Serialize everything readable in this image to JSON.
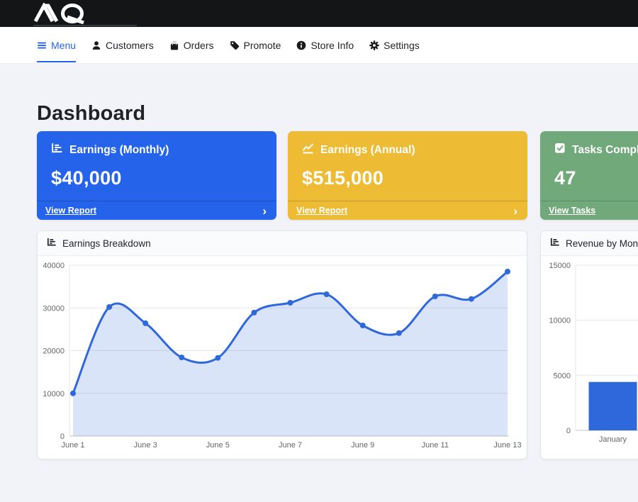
{
  "brand": {
    "logo_text": "AIQ",
    "logo_icon": "aiq-logo-icon"
  },
  "nav": {
    "active_color": "#2563eb",
    "items": [
      {
        "label": "Menu",
        "icon": "hamburger-icon",
        "active": true
      },
      {
        "label": "Customers",
        "icon": "person-icon",
        "active": false
      },
      {
        "label": "Orders",
        "icon": "bag-icon",
        "active": false
      },
      {
        "label": "Promote",
        "icon": "tag-icon",
        "active": false
      },
      {
        "label": "Store Info",
        "icon": "info-circle-icon",
        "active": false
      },
      {
        "label": "Settings",
        "icon": "gear-icon",
        "active": false
      }
    ]
  },
  "page": {
    "title": "Dashboard"
  },
  "stat_cards": [
    {
      "title": "Earnings (Monthly)",
      "value": "$40,000",
      "link_label": "View Report",
      "chevron": "›",
      "color": "#2563eb",
      "icon": "chart-bar-icon"
    },
    {
      "title": "Earnings (Annual)",
      "value": "$515,000",
      "link_label": "View Report",
      "chevron": "›",
      "color": "#edbc34",
      "icon": "chart-line-icon"
    },
    {
      "title": "Tasks Completed",
      "value": "47",
      "link_label": "View Tasks",
      "chevron": "›",
      "color": "#72a97a",
      "icon": "check-square-icon"
    }
  ],
  "chart_data": [
    {
      "type": "area",
      "title": "Earnings Breakdown",
      "header_icon": "chart-bar-icon",
      "x": [
        "June 1",
        "June 2",
        "June 3",
        "June 4",
        "June 5",
        "June 6",
        "June 7",
        "June 8",
        "June 9",
        "June 10",
        "June 11",
        "June 12",
        "June 13"
      ],
      "values": [
        10000,
        30200,
        26400,
        18400,
        18300,
        28900,
        31200,
        33200,
        25900,
        24100,
        32700,
        32100,
        38500
      ],
      "x_tick_labels": [
        "June 1",
        "June 3",
        "June 5",
        "June 7",
        "June 9",
        "June 11",
        "June 13"
      ],
      "x_tick_every": 2,
      "ylim": [
        0,
        40000
      ],
      "y_ticks": [
        0,
        10000,
        20000,
        30000,
        40000
      ],
      "grid": true,
      "legend": "none",
      "line_color": "#2e68db",
      "point_color": "#2e68db",
      "fill_opacity": 0.18,
      "tick_color": "#666666"
    },
    {
      "type": "bar",
      "title": "Revenue by Month",
      "header_icon": "chart-bar-icon",
      "categories": [
        "January"
      ],
      "values": [
        4400
      ],
      "ylim": [
        0,
        15000
      ],
      "y_ticks": [
        0,
        5000,
        10000,
        15000
      ],
      "grid": true,
      "legend": "none",
      "bar_color": "#2e68db",
      "tick_color": "#666666"
    }
  ]
}
